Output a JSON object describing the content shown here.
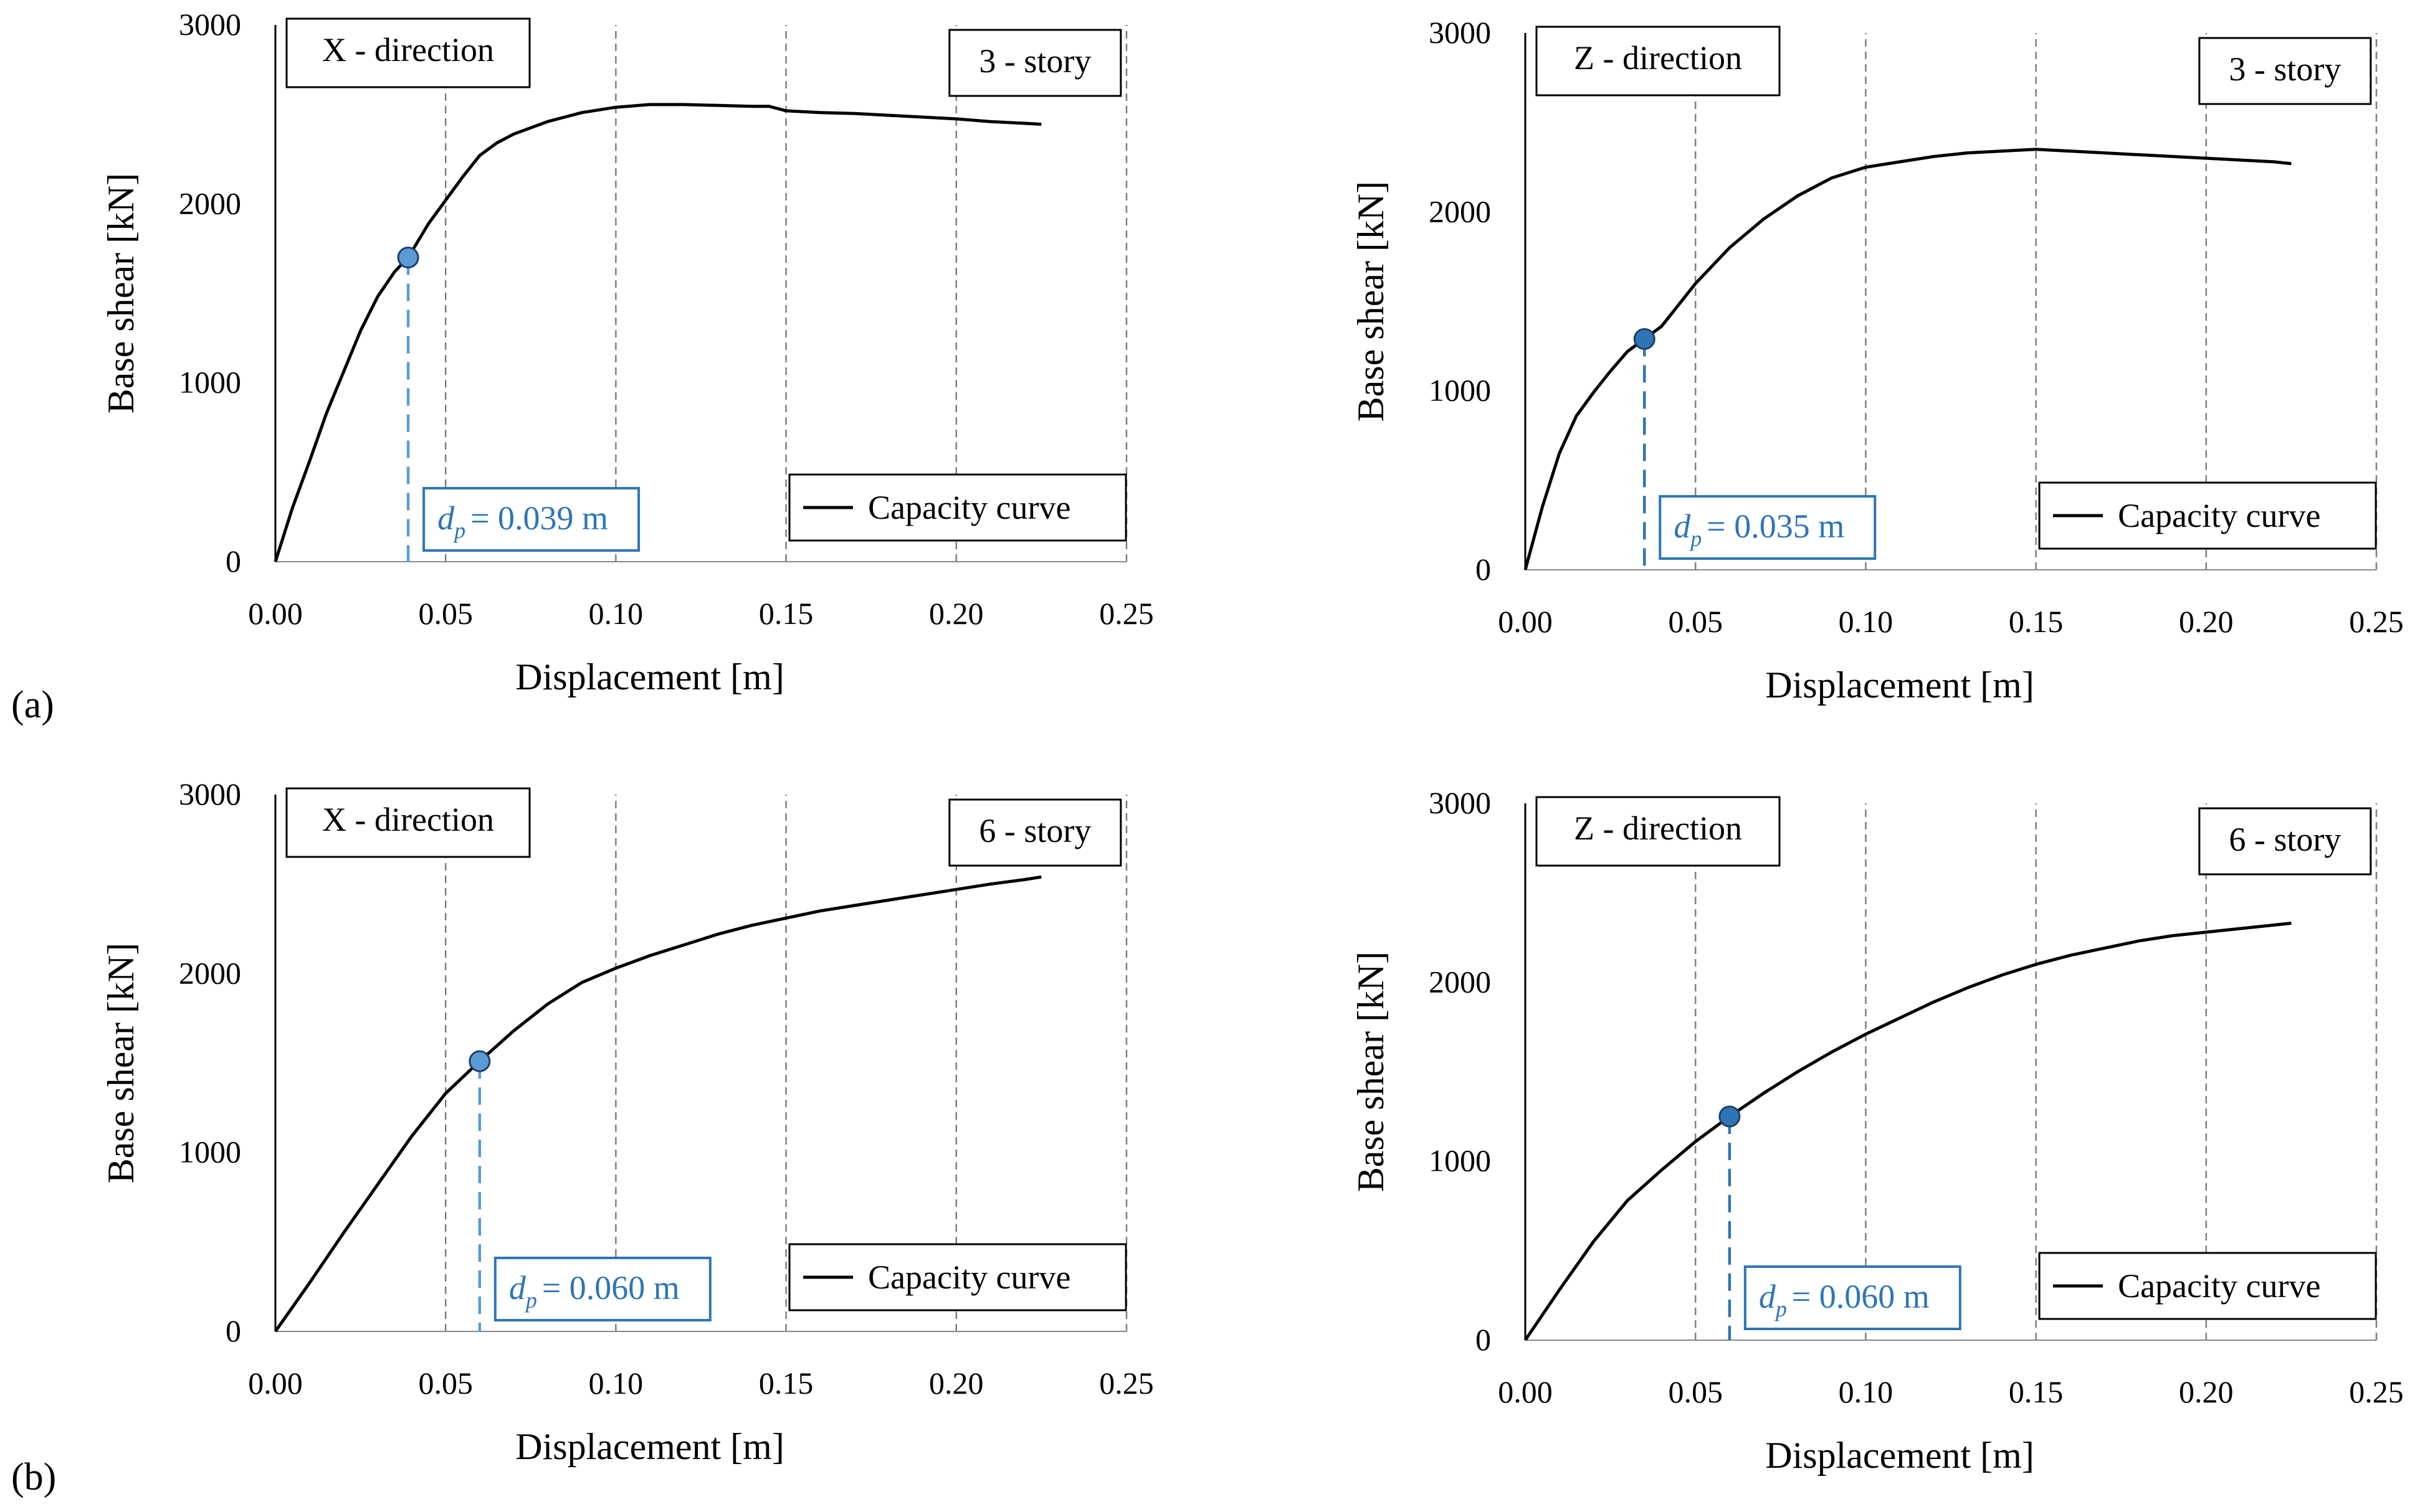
{
  "figure": {
    "row_labels": [
      {
        "letter": "a",
        "text": "(a)"
      },
      {
        "letter": "b",
        "text": "(b)"
      }
    ],
    "colors": {
      "curve": "#000000",
      "grid": "#7f7f7f",
      "marker_x": "#5b9bd5",
      "marker_z": "#2e75b6",
      "annotation": "#2e75b6",
      "annotation_border": "#2e75b6"
    }
  },
  "chart_data": [
    {
      "type": "line",
      "panel": "a-left",
      "direction_label": "X - direction",
      "story_label": "3 - story",
      "xlabel": "Displacement  [m]",
      "ylabel": "Base shear [kN]",
      "xlim": [
        0,
        0.25
      ],
      "ylim": [
        0,
        3000
      ],
      "xticks": [
        "0.00",
        "0.05",
        "0.10",
        "0.15",
        "0.20",
        "0.25"
      ],
      "yticks": [
        "0",
        "1000",
        "2000",
        "3000"
      ],
      "grid": "vertical dashed",
      "legend": "Capacity curve",
      "legend_position": "bottom-right",
      "series": [
        {
          "name": "Capacity curve",
          "x": [
            0,
            0.005,
            0.01,
            0.015,
            0.02,
            0.025,
            0.03,
            0.035,
            0.039,
            0.045,
            0.05,
            0.055,
            0.06,
            0.065,
            0.07,
            0.08,
            0.09,
            0.1,
            0.11,
            0.12,
            0.13,
            0.14,
            0.145,
            0.15,
            0.16,
            0.17,
            0.18,
            0.19,
            0.2,
            0.21,
            0.22,
            0.225
          ],
          "y": [
            0,
            300,
            560,
            830,
            1060,
            1290,
            1480,
            1620,
            1700,
            1890,
            2020,
            2150,
            2270,
            2340,
            2390,
            2460,
            2510,
            2540,
            2555,
            2555,
            2550,
            2545,
            2545,
            2520,
            2510,
            2505,
            2495,
            2485,
            2475,
            2460,
            2450,
            2445
          ]
        }
      ],
      "point": {
        "x": 0.039,
        "y": 1700
      },
      "annotation": {
        "symbol": "d",
        "subscript": "p",
        "value": "= 0.039 m"
      }
    },
    {
      "type": "line",
      "panel": "a-right",
      "direction_label": "Z - direction",
      "story_label": "3 - story",
      "xlabel": "Displacement  [m]",
      "ylabel": "Base shear [kN]",
      "xlim": [
        0,
        0.25
      ],
      "ylim": [
        0,
        3000
      ],
      "xticks": [
        "0.00",
        "0.05",
        "0.10",
        "0.15",
        "0.20",
        "0.25"
      ],
      "yticks": [
        "0",
        "1000",
        "2000",
        "3000"
      ],
      "grid": "vertical dashed",
      "legend": "Capacity curve",
      "legend_position": "bottom-right",
      "series": [
        {
          "name": "Capacity curve",
          "x": [
            0,
            0.005,
            0.01,
            0.015,
            0.02,
            0.025,
            0.03,
            0.035,
            0.04,
            0.05,
            0.06,
            0.07,
            0.08,
            0.09,
            0.1,
            0.11,
            0.12,
            0.13,
            0.14,
            0.15,
            0.155,
            0.16,
            0.17,
            0.18,
            0.19,
            0.2,
            0.21,
            0.22,
            0.225
          ],
          "y": [
            0,
            350,
            650,
            860,
            990,
            1110,
            1220,
            1290,
            1360,
            1600,
            1800,
            1960,
            2090,
            2190,
            2250,
            2280,
            2310,
            2330,
            2340,
            2350,
            2345,
            2340,
            2330,
            2320,
            2310,
            2300,
            2290,
            2280,
            2270
          ]
        }
      ],
      "point": {
        "x": 0.035,
        "y": 1290
      },
      "annotation": {
        "symbol": "d",
        "subscript": "p",
        "value": "= 0.035 m"
      }
    },
    {
      "type": "line",
      "panel": "b-left",
      "direction_label": "X - direction",
      "story_label": "6 - story",
      "xlabel": "Displacement  [m]",
      "ylabel": "Base shear [kN]",
      "xlim": [
        0,
        0.25
      ],
      "ylim": [
        0,
        3000
      ],
      "xticks": [
        "0.00",
        "0.05",
        "0.10",
        "0.15",
        "0.20",
        "0.25"
      ],
      "yticks": [
        "0",
        "1000",
        "2000",
        "3000"
      ],
      "grid": "vertical dashed",
      "legend": "Capacity curve",
      "legend_position": "bottom-right",
      "series": [
        {
          "name": "Capacity curve",
          "x": [
            0,
            0.01,
            0.02,
            0.03,
            0.04,
            0.05,
            0.06,
            0.07,
            0.08,
            0.09,
            0.1,
            0.11,
            0.12,
            0.13,
            0.14,
            0.15,
            0.16,
            0.17,
            0.18,
            0.19,
            0.2,
            0.21,
            0.22,
            0.225
          ],
          "y": [
            0,
            270,
            550,
            820,
            1090,
            1330,
            1510,
            1680,
            1830,
            1950,
            2030,
            2100,
            2160,
            2220,
            2270,
            2310,
            2350,
            2380,
            2410,
            2440,
            2470,
            2500,
            2525,
            2540
          ]
        }
      ],
      "point": {
        "x": 0.06,
        "y": 1510
      },
      "annotation": {
        "symbol": "d",
        "subscript": "p",
        "value": "= 0.060 m"
      }
    },
    {
      "type": "line",
      "panel": "b-right",
      "direction_label": "Z - direction",
      "story_label": "6 - story",
      "xlabel": "Displacement  [m]",
      "ylabel": "Base shear [kN]",
      "xlim": [
        0,
        0.25
      ],
      "ylim": [
        0,
        3000
      ],
      "xticks": [
        "0.00",
        "0.05",
        "0.10",
        "0.15",
        "0.20",
        "0.25"
      ],
      "yticks": [
        "0",
        "1000",
        "2000",
        "3000"
      ],
      "grid": "vertical dashed",
      "legend": "Capacity curve",
      "legend_position": "bottom-right",
      "series": [
        {
          "name": "Capacity curve",
          "x": [
            0,
            0.01,
            0.02,
            0.03,
            0.04,
            0.05,
            0.06,
            0.07,
            0.08,
            0.09,
            0.1,
            0.11,
            0.12,
            0.13,
            0.14,
            0.15,
            0.16,
            0.17,
            0.18,
            0.19,
            0.2,
            0.21,
            0.22,
            0.225
          ],
          "y": [
            0,
            280,
            550,
            780,
            950,
            1110,
            1250,
            1380,
            1500,
            1610,
            1710,
            1800,
            1890,
            1970,
            2040,
            2100,
            2150,
            2190,
            2230,
            2260,
            2280,
            2300,
            2320,
            2330
          ]
        }
      ],
      "point": {
        "x": 0.06,
        "y": 1250
      },
      "annotation": {
        "symbol": "d",
        "subscript": "p",
        "value": "= 0.060 m"
      }
    }
  ]
}
